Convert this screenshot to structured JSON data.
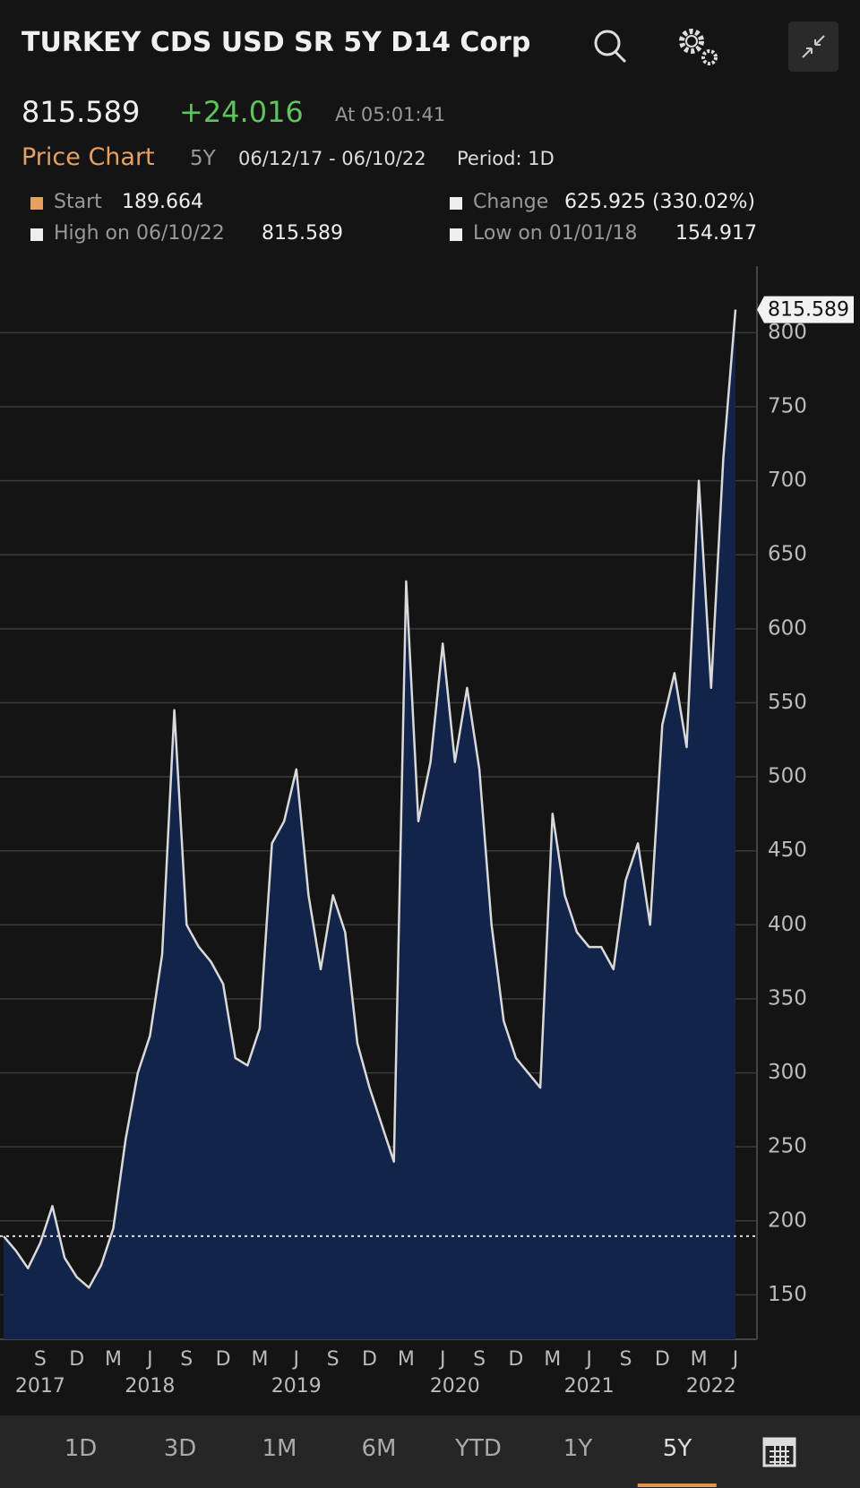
{
  "header": {
    "title": "TURKEY CDS USD SR 5Y D14 Corp",
    "price": "815.589",
    "change": "+24.016",
    "time": "At 05:01:41",
    "chart_label": "Price Chart",
    "range": "5Y",
    "dates": "06/12/17 - 06/10/22",
    "period": "Period: 1D"
  },
  "stats": {
    "start": {
      "label": "Start",
      "value": 189.664
    },
    "change": {
      "label": "Change",
      "value": "625.925 (330.02%)"
    },
    "high": {
      "label": "High on 06/10/22",
      "value": 815.589
    },
    "low": {
      "label": "Low on 01/01/18",
      "value": 154.917
    }
  },
  "chart_data": {
    "type": "area",
    "x": [
      "2017-06",
      "2017-07",
      "2017-08",
      "2017-09",
      "2017-10",
      "2017-11",
      "2017-12",
      "2018-01",
      "2018-02",
      "2018-03",
      "2018-04",
      "2018-05",
      "2018-06",
      "2018-07",
      "2018-08",
      "2018-09",
      "2018-10",
      "2018-11",
      "2018-12",
      "2019-01",
      "2019-02",
      "2019-03",
      "2019-04",
      "2019-05",
      "2019-06",
      "2019-07",
      "2019-08",
      "2019-09",
      "2019-10",
      "2019-11",
      "2019-12",
      "2020-01",
      "2020-02",
      "2020-03",
      "2020-04",
      "2020-05",
      "2020-06",
      "2020-07",
      "2020-08",
      "2020-09",
      "2020-10",
      "2020-11",
      "2020-12",
      "2021-01",
      "2021-02",
      "2021-03",
      "2021-04",
      "2021-05",
      "2021-06",
      "2021-07",
      "2021-08",
      "2021-09",
      "2021-10",
      "2021-11",
      "2021-12",
      "2022-01",
      "2022-02",
      "2022-03",
      "2022-04",
      "2022-05",
      "2022-06"
    ],
    "values": [
      189.664,
      180,
      168,
      185,
      210,
      175,
      162,
      154.917,
      170,
      195,
      255,
      300,
      325,
      380,
      545,
      400,
      385,
      375,
      360,
      310,
      305,
      330,
      455,
      470,
      505,
      420,
      370,
      420,
      395,
      320,
      290,
      265,
      240,
      632,
      470,
      510,
      590,
      510,
      560,
      505,
      400,
      335,
      310,
      300,
      290,
      475,
      420,
      395,
      385,
      385,
      370,
      430,
      455,
      400,
      535,
      570,
      520,
      700,
      560,
      715,
      815.589
    ],
    "color": "#13244a",
    "line_color": "#d9d9d9",
    "xlim": [
      "2017-06",
      "2022-06"
    ],
    "xticks": [
      {
        "value": "2017-09",
        "label": "S"
      },
      {
        "value": "2017-12",
        "label": "D"
      },
      {
        "value": "2018-03",
        "label": "M"
      },
      {
        "value": "2018-06",
        "label": "J"
      },
      {
        "value": "2018-09",
        "label": "S"
      },
      {
        "value": "2018-12",
        "label": "D"
      },
      {
        "value": "2019-03",
        "label": "M"
      },
      {
        "value": "2019-06",
        "label": "J"
      },
      {
        "value": "2019-09",
        "label": "S"
      },
      {
        "value": "2019-12",
        "label": "D"
      },
      {
        "value": "2020-03",
        "label": "M"
      },
      {
        "value": "2020-06",
        "label": "J"
      },
      {
        "value": "2020-09",
        "label": "S"
      },
      {
        "value": "2020-12",
        "label": "D"
      },
      {
        "value": "2021-03",
        "label": "M"
      },
      {
        "value": "2021-06",
        "label": "J"
      },
      {
        "value": "2021-09",
        "label": "S"
      },
      {
        "value": "2021-12",
        "label": "D"
      },
      {
        "value": "2022-03",
        "label": "M"
      },
      {
        "value": "2022-06",
        "label": "J"
      }
    ],
    "xyears": [
      {
        "value": "2017-09",
        "label": "2017"
      },
      {
        "value": "2018-06",
        "label": "2018"
      },
      {
        "value": "2019-06",
        "label": "2019"
      },
      {
        "value": "2020-07",
        "label": "2020"
      },
      {
        "value": "2021-06",
        "label": "2021"
      },
      {
        "value": "2022-04",
        "label": "2022"
      }
    ],
    "ylim": [
      120,
      845
    ],
    "yticks": [
      150,
      200,
      250,
      300,
      350,
      400,
      450,
      500,
      550,
      600,
      650,
      700,
      750,
      800
    ],
    "grid": true
  },
  "tabs": [
    "1D",
    "3D",
    "1M",
    "6M",
    "YTD",
    "1Y",
    "5Y"
  ],
  "selected_tab": 6
}
